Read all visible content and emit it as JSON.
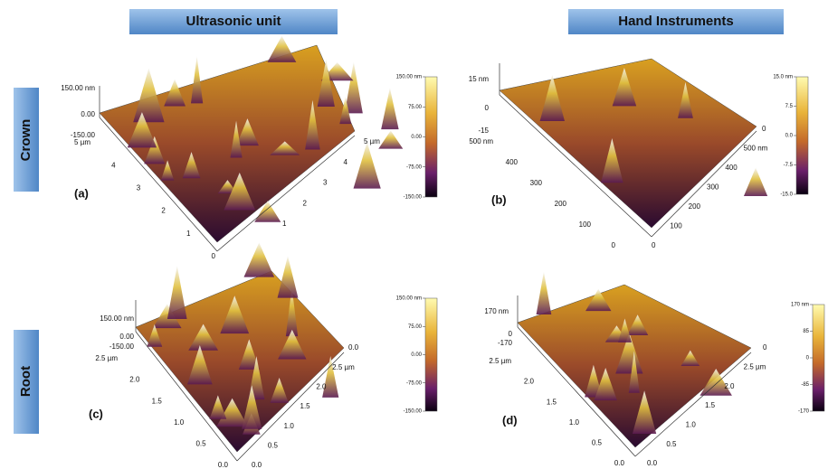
{
  "header": {
    "left": "Ultrasonic unit",
    "right": "Hand Instruments"
  },
  "rows": [
    "Crown",
    "Root"
  ],
  "panels": [
    {
      "label": "(a)",
      "z_axis": [
        "150.00 nm",
        "0.00",
        "-150.00"
      ],
      "left_axis": [
        "5 µm",
        "4",
        "3",
        "2",
        "1",
        "0"
      ],
      "right_axis": [
        "5 µm",
        "4",
        "3",
        "2",
        "1"
      ],
      "colorbar": [
        "150.00 nm",
        "75.00",
        "0.00",
        "-75.00",
        "-150.00"
      ]
    },
    {
      "label": "(b)",
      "z_axis": [
        "15 nm",
        "0",
        "-15"
      ],
      "left_axis": [
        "500 nm",
        "400",
        "300",
        "200",
        "100",
        "0"
      ],
      "right_axis": [
        "0",
        "500 nm",
        "400",
        "300",
        "200",
        "100",
        "0"
      ],
      "colorbar": [
        "15.0 nm",
        "7.5",
        "0.0",
        "-7.5",
        "-15.0"
      ]
    },
    {
      "label": "(c)",
      "z_axis": [
        "150.00 nm",
        "0.00",
        "-150.00"
      ],
      "left_axis": [
        "2.5 µm",
        "2.0",
        "1.5",
        "1.0",
        "0.5",
        "0.0"
      ],
      "right_axis": [
        "0.0",
        "2.5 µm",
        "2.0",
        "1.5",
        "1.0",
        "0.5",
        "0.0"
      ],
      "colorbar": [
        "150.00 nm",
        "75.00",
        "0.00",
        "-75.00",
        "-150.00"
      ]
    },
    {
      "label": "(d)",
      "z_axis": [
        "170 nm",
        "0",
        "-170"
      ],
      "left_axis": [
        "2.5 µm",
        "2.0",
        "1.5",
        "1.0",
        "0.5",
        "0.0"
      ],
      "right_axis": [
        "0",
        "2.5 µm",
        "2.0",
        "1.5",
        "1.0",
        "0.5",
        "0.0"
      ],
      "colorbar": [
        "170 nm",
        "85",
        "0",
        "-85",
        "-170"
      ]
    }
  ]
}
